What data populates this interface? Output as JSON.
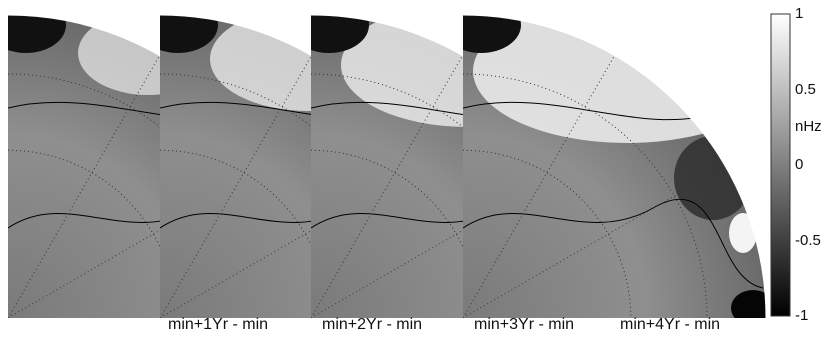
{
  "chart_data": {
    "type": "heatmap",
    "panels": [
      {
        "label": "min+1Yr - min"
      },
      {
        "label": "min+2Yr - min"
      },
      {
        "label": "min+3Yr - min"
      },
      {
        "label": "min+4Yr - min"
      }
    ],
    "colorbar": {
      "units": "nHz",
      "range": [
        -1,
        1
      ],
      "ticks": [
        "1",
        "0.5",
        "0",
        "-0.5",
        "-1"
      ],
      "colormap": "grayscale",
      "low_color": "#000000",
      "high_color": "#ffffff"
    },
    "grid": true
  }
}
